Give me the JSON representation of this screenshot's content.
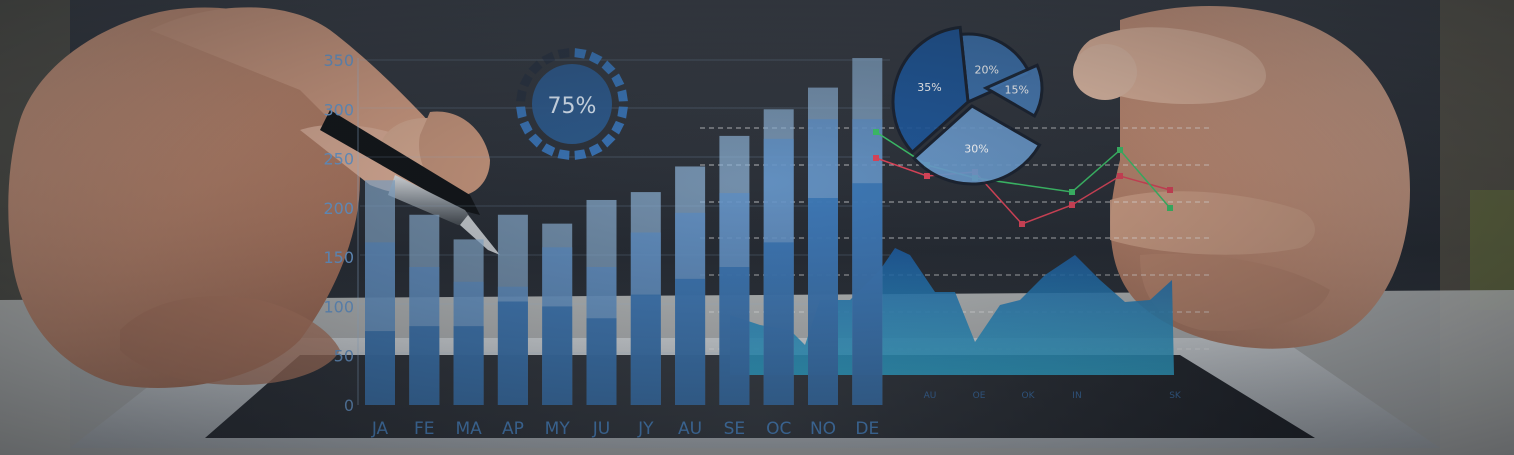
{
  "chart_data": [
    {
      "type": "bar",
      "categories": [
        "JA",
        "FE",
        "MA",
        "AP",
        "MY",
        "JU",
        "JY",
        "AU",
        "SE",
        "OC",
        "NO",
        "DE"
      ],
      "series": [
        {
          "values": [
            228,
            193,
            168,
            193,
            184,
            208,
            216,
            242,
            273,
            300,
            322,
            352
          ]
        },
        {
          "values": [
            165,
            140,
            125,
            120,
            160,
            140,
            175,
            195,
            215,
            270,
            290,
            290
          ]
        },
        {
          "values": [
            75,
            80,
            80,
            105,
            100,
            88,
            112,
            128,
            140,
            165,
            210,
            225
          ]
        }
      ],
      "yticks": [
        0,
        50,
        100,
        150,
        200,
        250,
        300,
        350
      ],
      "ylim": [
        0,
        350
      ]
    },
    {
      "type": "pie",
      "slices": [
        {
          "label": "20%",
          "value": 20
        },
        {
          "label": "15%",
          "value": 15
        },
        {
          "label": "30%",
          "value": 30
        },
        {
          "label": "35%",
          "value": 35
        }
      ]
    },
    {
      "type": "line",
      "series": [
        {
          "color": "#e0455a",
          "values": [
            158,
            176,
            172,
            224,
            205,
            176,
            190
          ]
        },
        {
          "color": "#3dc46a",
          "values": [
            132,
            165,
            178,
            192,
            150,
            208
          ]
        }
      ]
    },
    {
      "type": "area",
      "xticks": [
        "AU",
        "OE",
        "OK",
        "IN",
        "",
        "SK"
      ]
    }
  ],
  "gauge": {
    "label": "75%",
    "value": 0.75
  },
  "colors": {
    "bar_light": "#8fb4d8",
    "bar_mid": "#5b8fc7",
    "bar_dark": "#2f6fb2",
    "area": "#2aa6d8"
  }
}
